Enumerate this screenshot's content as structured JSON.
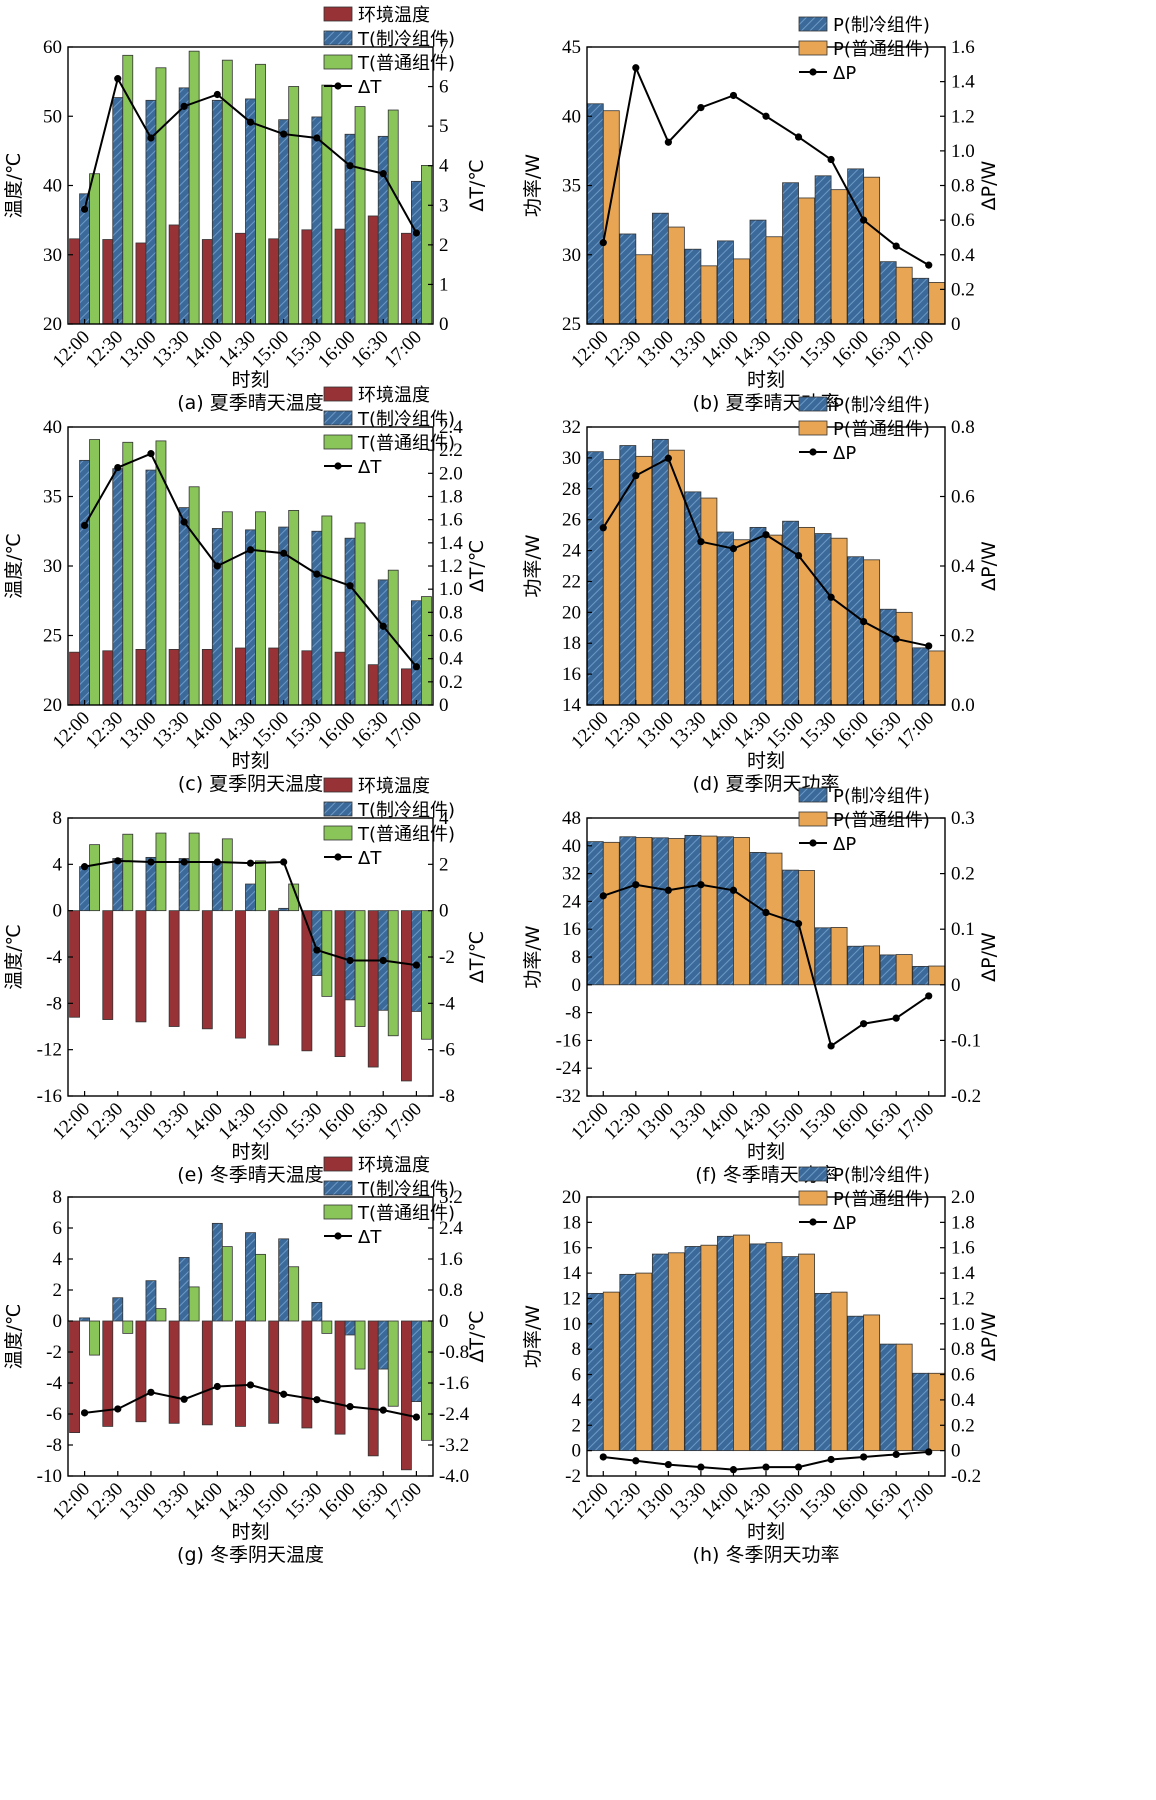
{
  "colors": {
    "ambient": "#973337",
    "cooled": "#3b6a9a",
    "normal": "#8ac55a",
    "normal_power": "#e8a553",
    "delta": "#000000"
  },
  "legend": {
    "ambient": "环境温度",
    "t_cooled": "T(制冷组件)",
    "t_normal": "T(普通组件)",
    "delta_t": "ΔT",
    "p_cooled": "P(制冷组件)",
    "p_normal": "P(普通组件)",
    "delta_p": "ΔP"
  },
  "chart_data": [
    {
      "id": "a",
      "type": "bar",
      "kind": "temperature",
      "title": "(a) 夏季晴天温度",
      "xlabel": "时刻",
      "ylabel": "温度/℃",
      "y2label": "ΔT/℃",
      "categories": [
        "12:00",
        "12:30",
        "13:00",
        "13:30",
        "14:00",
        "14:30",
        "15:00",
        "15:30",
        "16:00",
        "16:30",
        "17:00"
      ],
      "ylim": [
        20,
        60
      ],
      "yticks": [
        20,
        30,
        40,
        50,
        60
      ],
      "ytick_labels": [
        "20",
        "30",
        "40",
        "50",
        "60"
      ],
      "y2lim": [
        0,
        7
      ],
      "y2ticks": [
        0,
        1,
        2,
        3,
        4,
        5,
        6,
        7
      ],
      "y2tick_labels": [
        "0",
        "1",
        "2",
        "3",
        "4",
        "5",
        "6",
        "7"
      ],
      "series": [
        {
          "name": "环境温度",
          "values": [
            32.3,
            32.2,
            31.7,
            34.3,
            32.2,
            33.1,
            32.3,
            33.6,
            33.7,
            35.6,
            33.1
          ]
        },
        {
          "name": "T(制冷组件)",
          "values": [
            38.8,
            52.7,
            52.3,
            54.1,
            52.3,
            52.5,
            49.5,
            49.9,
            47.4,
            47.1,
            40.6
          ]
        },
        {
          "name": "T(普通组件)",
          "values": [
            41.7,
            58.8,
            57.0,
            59.4,
            58.1,
            57.5,
            54.3,
            54.5,
            51.4,
            50.9,
            42.9
          ]
        }
      ],
      "line": {
        "name": "ΔT",
        "values": [
          2.9,
          6.2,
          4.7,
          5.5,
          5.8,
          5.1,
          4.8,
          4.7,
          4.0,
          3.8,
          2.3
        ]
      }
    },
    {
      "id": "b",
      "type": "bar",
      "kind": "power",
      "title": "(b) 夏季晴天功率",
      "xlabel": "时刻",
      "ylabel": "功率/W",
      "y2label": "ΔP/W",
      "categories": [
        "12:00",
        "12:30",
        "13:00",
        "13:30",
        "14:00",
        "14:30",
        "15:00",
        "15:30",
        "16:00",
        "16:30",
        "17:00"
      ],
      "ylim": [
        25,
        45
      ],
      "yticks": [
        25,
        30,
        35,
        40,
        45
      ],
      "ytick_labels": [
        "25",
        "30",
        "35",
        "40",
        "45"
      ],
      "y2lim": [
        0,
        1.6
      ],
      "y2ticks": [
        0,
        0.2,
        0.4,
        0.6,
        0.8,
        1.0,
        1.2,
        1.4,
        1.6
      ],
      "y2tick_labels": [
        "0",
        "0.2",
        "0.4",
        "0.6",
        "0.8",
        "1.0",
        "1.2",
        "1.4",
        "1.6"
      ],
      "series": [
        {
          "name": "P(制冷组件)",
          "values": [
            40.9,
            31.5,
            33.0,
            30.4,
            31.0,
            32.5,
            35.2,
            35.7,
            36.2,
            29.5,
            28.3
          ]
        },
        {
          "name": "P(普通组件)",
          "values": [
            40.4,
            30.0,
            32.0,
            29.2,
            29.7,
            31.3,
            34.1,
            34.7,
            35.6,
            29.1,
            28.0
          ]
        }
      ],
      "line": {
        "name": "ΔP",
        "values": [
          0.47,
          1.48,
          1.05,
          1.25,
          1.32,
          1.2,
          1.08,
          0.95,
          0.6,
          0.45,
          0.34
        ]
      }
    },
    {
      "id": "c",
      "type": "bar",
      "kind": "temperature",
      "title": "(c) 夏季阴天温度",
      "xlabel": "时刻",
      "ylabel": "温度/℃",
      "y2label": "ΔT/℃",
      "categories": [
        "12:00",
        "12:30",
        "13:00",
        "13:30",
        "14:00",
        "14:30",
        "15:00",
        "15:30",
        "16:00",
        "16:30",
        "17:00"
      ],
      "ylim": [
        20,
        40
      ],
      "yticks": [
        20,
        25,
        30,
        35,
        40
      ],
      "ytick_labels": [
        "20",
        "25",
        "30",
        "35",
        "40"
      ],
      "y2lim": [
        0,
        2.4
      ],
      "y2ticks": [
        0,
        0.2,
        0.4,
        0.6,
        0.8,
        1.0,
        1.2,
        1.4,
        1.6,
        1.8,
        2.0,
        2.2,
        2.4
      ],
      "y2tick_labels": [
        "0",
        "0.2",
        "0.4",
        "0.6",
        "0.8",
        "1.0",
        "1.2",
        "1.4",
        "1.6",
        "1.8",
        "2.0",
        "2.2",
        "2.4"
      ],
      "series": [
        {
          "name": "环境温度",
          "values": [
            23.8,
            23.9,
            24.0,
            24.0,
            24.0,
            24.1,
            24.1,
            23.9,
            23.8,
            22.9,
            22.6
          ]
        },
        {
          "name": "T(制冷组件)",
          "values": [
            37.6,
            37.0,
            36.9,
            34.2,
            32.7,
            32.6,
            32.8,
            32.5,
            32.0,
            29.0,
            27.5
          ]
        },
        {
          "name": "T(普通组件)",
          "values": [
            39.1,
            38.9,
            39.0,
            35.7,
            33.9,
            33.9,
            34.0,
            33.6,
            33.1,
            29.7,
            27.8
          ]
        }
      ],
      "line": {
        "name": "ΔT",
        "values": [
          1.55,
          2.05,
          2.17,
          1.58,
          1.2,
          1.34,
          1.31,
          1.13,
          1.03,
          0.68,
          0.33
        ]
      }
    },
    {
      "id": "d",
      "type": "bar",
      "kind": "power",
      "title": "(d) 夏季阴天功率",
      "xlabel": "时刻",
      "ylabel": "功率/W",
      "y2label": "ΔP/W",
      "categories": [
        "12:00",
        "12:30",
        "13:00",
        "13:30",
        "14:00",
        "14:30",
        "15:00",
        "15:30",
        "16:00",
        "16:30",
        "17:00"
      ],
      "ylim": [
        14,
        32
      ],
      "yticks": [
        14,
        16,
        18,
        20,
        22,
        24,
        26,
        28,
        30,
        32
      ],
      "ytick_labels": [
        "14",
        "16",
        "18",
        "20",
        "22",
        "24",
        "26",
        "28",
        "30",
        "32"
      ],
      "y2lim": [
        0,
        0.8
      ],
      "y2ticks": [
        0,
        0.2,
        0.4,
        0.6,
        0.8
      ],
      "y2tick_labels": [
        "0.0",
        "0.2",
        "0.4",
        "0.6",
        "0.8"
      ],
      "series": [
        {
          "name": "P(制冷组件)",
          "values": [
            30.4,
            30.8,
            31.2,
            27.8,
            25.2,
            25.5,
            25.9,
            25.1,
            23.6,
            20.2,
            17.7
          ]
        },
        {
          "name": "P(普通组件)",
          "values": [
            29.9,
            30.1,
            30.5,
            27.4,
            24.7,
            25.0,
            25.5,
            24.8,
            23.4,
            20.0,
            17.5
          ]
        }
      ],
      "line": {
        "name": "ΔP",
        "values": [
          0.51,
          0.66,
          0.71,
          0.47,
          0.45,
          0.49,
          0.43,
          0.31,
          0.24,
          0.19,
          0.17
        ]
      }
    },
    {
      "id": "e",
      "type": "bar",
      "kind": "temperature",
      "title": "(e) 冬季晴天温度",
      "xlabel": "时刻",
      "ylabel": "温度/℃",
      "y2label": "ΔT/℃",
      "categories": [
        "12:00",
        "12:30",
        "13:00",
        "13:30",
        "14:00",
        "14:30",
        "15:00",
        "15:30",
        "16:00",
        "16:30",
        "17:00"
      ],
      "ylim": [
        -16,
        8
      ],
      "yticks": [
        -16,
        -12,
        -8,
        -4,
        0,
        4,
        8
      ],
      "ytick_labels": [
        "-16",
        "-12",
        "-8",
        "-4",
        "0",
        "4",
        "8"
      ],
      "y2lim": [
        -8,
        4
      ],
      "y2ticks": [
        -8,
        -6,
        -4,
        -2,
        0,
        2,
        4
      ],
      "y2tick_labels": [
        "-8",
        "-6",
        "-4",
        "-2",
        "0",
        "2",
        "4"
      ],
      "series": [
        {
          "name": "环境温度",
          "values": [
            -9.2,
            -9.4,
            -9.6,
            -10.0,
            -10.2,
            -11.0,
            -11.6,
            -12.1,
            -12.6,
            -13.5,
            -14.7
          ]
        },
        {
          "name": "T(制冷组件)",
          "values": [
            3.8,
            4.5,
            4.6,
            4.5,
            4.2,
            2.3,
            0.2,
            -5.6,
            -7.7,
            -8.6,
            -8.7
          ]
        },
        {
          "name": "T(普通组件)",
          "values": [
            5.7,
            6.6,
            6.7,
            6.7,
            6.2,
            4.3,
            2.3,
            -7.4,
            -10.0,
            -10.8,
            -11.1
          ]
        }
      ],
      "line": {
        "name": "ΔT",
        "values": [
          1.9,
          2.15,
          2.1,
          2.1,
          2.1,
          2.05,
          2.1,
          -1.7,
          -2.15,
          -2.15,
          -2.35
        ]
      }
    },
    {
      "id": "f",
      "type": "bar",
      "kind": "power",
      "title": "(f) 冬季晴天功率",
      "xlabel": "时刻",
      "ylabel": "功率/W",
      "y2label": "ΔP/W",
      "categories": [
        "12:00",
        "12:30",
        "13:00",
        "13:30",
        "14:00",
        "14:30",
        "15:00",
        "15:30",
        "16:00",
        "16:30",
        "17:00"
      ],
      "ylim": [
        -32,
        48
      ],
      "yticks": [
        -32,
        -24,
        -16,
        -8,
        0,
        8,
        16,
        24,
        32,
        40,
        48
      ],
      "ytick_labels": [
        "-32",
        "-24",
        "-16",
        "-8",
        "0",
        "8",
        "16",
        "24",
        "32",
        "40",
        "48"
      ],
      "y2lim": [
        -0.2,
        0.3
      ],
      "y2ticks": [
        -0.2,
        -0.1,
        0,
        0.1,
        0.2,
        0.3
      ],
      "y2tick_labels": [
        "-0.2",
        "-0.1",
        "0",
        "0.1",
        "0.2",
        "0.3"
      ],
      "series": [
        {
          "name": "P(制冷组件)",
          "values": [
            41.2,
            42.6,
            42.3,
            43.0,
            42.6,
            38.1,
            33.0,
            16.4,
            11.1,
            8.6,
            5.3
          ]
        },
        {
          "name": "P(普通组件)",
          "values": [
            41.0,
            42.4,
            42.1,
            42.8,
            42.4,
            37.9,
            32.9,
            16.5,
            11.2,
            8.7,
            5.4
          ]
        }
      ],
      "line": {
        "name": "ΔP",
        "values": [
          0.16,
          0.18,
          0.17,
          0.18,
          0.17,
          0.13,
          0.11,
          -0.11,
          -0.07,
          -0.06,
          -0.02
        ]
      }
    },
    {
      "id": "g",
      "type": "bar",
      "kind": "temperature",
      "title": "(g) 冬季阴天温度",
      "xlabel": "时刻",
      "ylabel": "温度/℃",
      "y2label": "ΔT/℃",
      "categories": [
        "12:00",
        "12:30",
        "13:00",
        "13:30",
        "14:00",
        "14:30",
        "15:00",
        "15:30",
        "16:00",
        "16:30",
        "17:00"
      ],
      "ylim": [
        -10,
        8
      ],
      "yticks": [
        -10,
        -8,
        -6,
        -4,
        -2,
        0,
        2,
        4,
        6,
        8
      ],
      "ytick_labels": [
        "-10",
        "-8",
        "-6",
        "-4",
        "-2",
        "0",
        "2",
        "4",
        "6",
        "8"
      ],
      "y2lim": [
        -4,
        3.2
      ],
      "y2ticks": [
        -4,
        -3.2,
        -2.4,
        -1.6,
        -0.8,
        0,
        0.8,
        1.6,
        2.4,
        3.2
      ],
      "y2tick_labels": [
        "-4.0",
        "-3.2",
        "-2.4",
        "-1.6",
        "-0.8",
        "0",
        "0.8",
        "1.6",
        "2.4",
        "3.2"
      ],
      "series": [
        {
          "name": "环境温度",
          "values": [
            -7.2,
            -6.8,
            -6.5,
            -6.6,
            -6.7,
            -6.8,
            -6.6,
            -6.9,
            -7.3,
            -8.7,
            -9.6
          ]
        },
        {
          "name": "T(制冷组件)",
          "values": [
            0.2,
            1.5,
            2.6,
            4.1,
            6.3,
            5.7,
            5.3,
            1.2,
            -0.9,
            -3.1,
            -5.2
          ]
        },
        {
          "name": "T(普通组件)",
          "values": [
            -2.2,
            -0.8,
            0.8,
            2.2,
            4.8,
            4.3,
            3.5,
            -0.8,
            -3.1,
            -5.5,
            -7.7
          ]
        }
      ],
      "line": {
        "name": "ΔT",
        "values": [
          -2.37,
          -2.27,
          -1.84,
          -2.02,
          -1.69,
          -1.65,
          -1.89,
          -2.03,
          -2.21,
          -2.3,
          -2.48
        ]
      }
    },
    {
      "id": "h",
      "type": "bar",
      "kind": "power",
      "title": "(h) 冬季阴天功率",
      "xlabel": "时刻",
      "ylabel": "功率/W",
      "y2label": "ΔP/W",
      "categories": [
        "12:00",
        "12:30",
        "13:00",
        "13:30",
        "14:00",
        "14:30",
        "15:00",
        "15:30",
        "16:00",
        "16:30",
        "17:00"
      ],
      "ylim": [
        -2,
        20
      ],
      "yticks": [
        -2,
        0,
        2,
        4,
        6,
        8,
        10,
        12,
        14,
        16,
        18,
        20
      ],
      "ytick_labels": [
        "-2",
        "0",
        "2",
        "4",
        "6",
        "8",
        "10",
        "12",
        "14",
        "16",
        "18",
        "20"
      ],
      "y2lim": [
        -0.2,
        2.0
      ],
      "y2ticks": [
        -0.2,
        0,
        0.2,
        0.4,
        0.6,
        0.8,
        1.0,
        1.2,
        1.4,
        1.6,
        1.8,
        2.0
      ],
      "y2tick_labels": [
        "-0.2",
        "0",
        "0.2",
        "0.4",
        "0.6",
        "0.8",
        "1.0",
        "1.2",
        "1.4",
        "1.6",
        "1.8",
        "2.0"
      ],
      "series": [
        {
          "name": "P(制冷组件)",
          "values": [
            12.4,
            13.9,
            15.5,
            16.1,
            16.9,
            16.3,
            15.3,
            12.4,
            10.6,
            8.4,
            6.1
          ]
        },
        {
          "name": "P(普通组件)",
          "values": [
            12.5,
            14.0,
            15.6,
            16.2,
            17.0,
            16.4,
            15.5,
            12.5,
            10.7,
            8.4,
            6.1
          ]
        }
      ],
      "line": {
        "name": "ΔP",
        "values": [
          -0.05,
          -0.08,
          -0.11,
          -0.13,
          -0.15,
          -0.13,
          -0.13,
          -0.07,
          -0.05,
          -0.03,
          -0.01
        ]
      }
    }
  ]
}
